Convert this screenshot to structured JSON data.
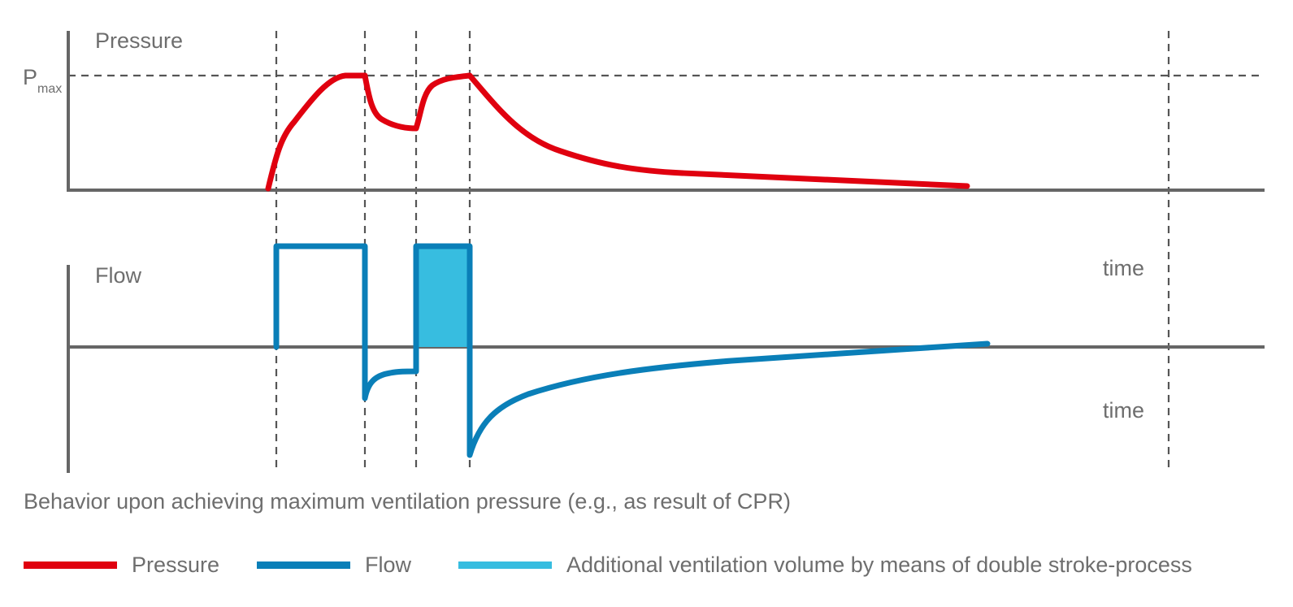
{
  "labels": {
    "pressure_axis": "Pressure",
    "flow_axis": "Flow",
    "pmax_main": "P",
    "pmax_sub": "max",
    "time_top": "time",
    "time_bottom": "time"
  },
  "caption": "Behavior upon achieving maximum ventilation pressure (e.g., as result of CPR)",
  "legend": [
    {
      "label": "Pressure",
      "color": "#e0000f"
    },
    {
      "label": "Flow",
      "color": "#0a7fb8"
    },
    {
      "label": "Additional ventilation volume by means of double stroke-process",
      "color": "#37bde0"
    }
  ],
  "colors": {
    "pressure": "#e0000f",
    "flow": "#0a7fb8",
    "additional_volume": "#37bde0",
    "axis": "#666666",
    "guide": "#555555"
  }
}
